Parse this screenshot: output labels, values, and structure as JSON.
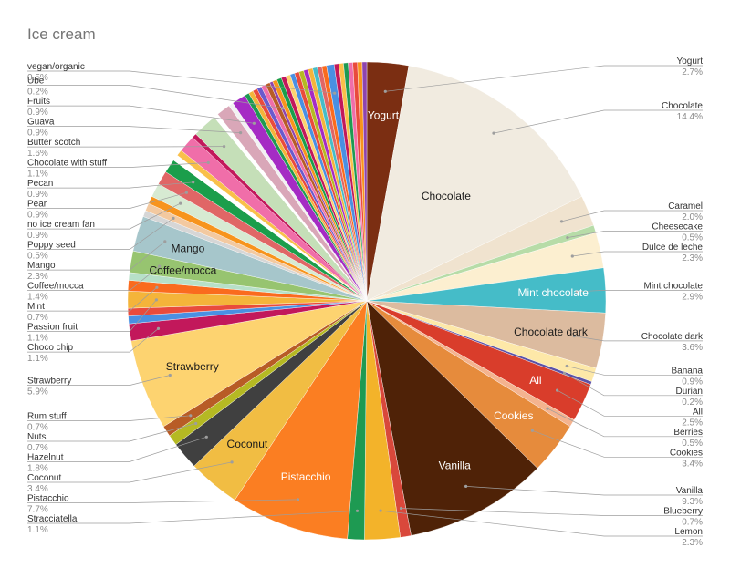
{
  "chart_data": {
    "type": "pie",
    "title": "Ice cream",
    "slices": [
      {
        "label": "Yogurt",
        "pct_label": "2.7%",
        "value": 2.7,
        "color": "#7b2e12",
        "slice_label": "Yogurt"
      },
      {
        "label": "Chocolate",
        "pct_label": "14.4%",
        "value": 14.4,
        "color": "#f1ebe0",
        "slice_label": "Chocolate"
      },
      {
        "label": "Caramel",
        "pct_label": "2.0%",
        "value": 2.0,
        "color": "#f0e3cf"
      },
      {
        "label": "Cheesecake",
        "pct_label": "0.5%",
        "value": 0.5,
        "color": "#b7dca8"
      },
      {
        "label": "Dulce de leche",
        "pct_label": "2.3%",
        "value": 2.3,
        "color": "#fcefd0"
      },
      {
        "label": "Mint chocolate",
        "pct_label": "2.9%",
        "value": 2.9,
        "color": "#45bcc8",
        "slice_label": "Mint chocolate"
      },
      {
        "label": "Chocolate dark",
        "pct_label": "3.6%",
        "value": 3.6,
        "color": "#dcbb9f",
        "slice_label": "Chocolate dark"
      },
      {
        "label": "Banana",
        "pct_label": "0.9%",
        "value": 0.9,
        "color": "#fde8a8"
      },
      {
        "label": "Durian",
        "pct_label": "0.2%",
        "value": 0.2,
        "color": "#5b52a6"
      },
      {
        "label": "All",
        "pct_label": "2.5%",
        "value": 2.5,
        "color": "#d93d2b",
        "slice_label": "All"
      },
      {
        "label": "Berries",
        "pct_label": "0.5%",
        "value": 0.5,
        "color": "#f4b38f"
      },
      {
        "label": "Cookies",
        "pct_label": "3.4%",
        "value": 3.4,
        "color": "#e68b3c",
        "slice_label": "Cookies"
      },
      {
        "label": "Vanilla",
        "pct_label": "9.3%",
        "value": 9.3,
        "color": "#4f2207",
        "slice_label": "Vanilla"
      },
      {
        "label": "Blueberry",
        "pct_label": "0.7%",
        "value": 0.7,
        "color": "#d9483b"
      },
      {
        "label": "Lemon",
        "pct_label": "2.3%",
        "value": 2.3,
        "color": "#f3b32a"
      },
      {
        "label": "Stracciatella",
        "pct_label": "1.1%",
        "value": 1.1,
        "color": "#1e9a52"
      },
      {
        "label": "Pistacchio",
        "pct_label": "7.7%",
        "value": 7.7,
        "color": "#fb7e22",
        "slice_label": "Pistacchio"
      },
      {
        "label": "Coconut",
        "pct_label": "3.4%",
        "value": 3.4,
        "color": "#f1bd43",
        "slice_label": "Coconut"
      },
      {
        "label": "Hazelnut",
        "pct_label": "1.8%",
        "value": 1.8,
        "color": "#404040"
      },
      {
        "label": "Nuts",
        "pct_label": "0.7%",
        "value": 0.7,
        "color": "#b5b923"
      },
      {
        "label": "Rum stuff",
        "pct_label": "0.7%",
        "value": 0.7,
        "color": "#b85c26"
      },
      {
        "label": "Strawberry",
        "pct_label": "5.9%",
        "value": 5.9,
        "color": "#fdd370",
        "slice_label": "Strawberry"
      },
      {
        "label": "Choco chip",
        "pct_label": "1.1%",
        "value": 1.1,
        "color": "#c2185b"
      },
      {
        "label": "",
        "value": 0.5,
        "color": "#4a90e2"
      },
      {
        "label": "",
        "value": 0.5,
        "color": "#e94b3c"
      },
      {
        "label": "Passion fruit",
        "pct_label": "1.1%",
        "value": 1.1,
        "color": "#f4b43a"
      },
      {
        "label": "Mint",
        "pct_label": "0.7%",
        "value": 0.7,
        "color": "#fa6b1e"
      },
      {
        "label": "",
        "value": 0.5,
        "color": "#b7e0c8"
      },
      {
        "label": "Coffee/mocca",
        "pct_label": "1.4%",
        "value": 1.4,
        "color": "#97c470",
        "slice_label": "Coffee/mocca"
      },
      {
        "label": "Mango",
        "pct_label": "2.3%",
        "value": 2.3,
        "color": "#a6c6cb",
        "slice_label": "Mango"
      },
      {
        "label": "",
        "value": 0.4,
        "color": "#d6d6d6"
      },
      {
        "label": "Poppy seed",
        "pct_label": "0.5%",
        "value": 0.5,
        "color": "#f3c9a0"
      },
      {
        "label": "",
        "value": 0.5,
        "color": "#f7941d"
      },
      {
        "label": "no ice cream fan",
        "pct_label": "0.9%",
        "value": 0.9,
        "color": "#d7ead2"
      },
      {
        "label": "Pear",
        "pct_label": "0.9%",
        "value": 0.9,
        "color": "#e06666"
      },
      {
        "label": "Pecan",
        "pct_label": "0.9%",
        "value": 0.9,
        "color": "#1b9e4b"
      },
      {
        "label": "",
        "value": 0.4,
        "color": "#ffffff"
      },
      {
        "label": "",
        "value": 0.4,
        "color": "#f9c04a"
      },
      {
        "label": "Chocolate with stuff",
        "pct_label": "1.1%",
        "value": 1.1,
        "color": "#f06ea9"
      },
      {
        "label": "",
        "value": 0.3,
        "color": "#c2185b"
      },
      {
        "label": "Butter scotch",
        "pct_label": "1.6%",
        "value": 1.6,
        "color": "#c5dfb8"
      },
      {
        "label": "",
        "value": 0.3,
        "color": "#ffffff"
      },
      {
        "label": "Guava",
        "pct_label": "0.9%",
        "value": 0.9,
        "color": "#d9a7b8"
      },
      {
        "label": "",
        "value": 0.3,
        "color": "#f2f2f2"
      },
      {
        "label": "Fruits",
        "pct_label": "0.9%",
        "value": 0.9,
        "color": "#a52bc4"
      },
      {
        "label": "",
        "value": 0.3,
        "color": "#1e9a52"
      },
      {
        "label": "",
        "value": 0.3,
        "color": "#f4b43a"
      },
      {
        "label": "",
        "value": 0.3,
        "color": "#e94b3c"
      },
      {
        "label": "",
        "value": 0.3,
        "color": "#6a5acd"
      },
      {
        "label": "",
        "value": 0.3,
        "color": "#f06ea9"
      },
      {
        "label": "",
        "value": 0.3,
        "color": "#b85c26"
      },
      {
        "label": "Ube",
        "pct_label": "0.2%",
        "value": 0.2,
        "color": "#8e44ad"
      },
      {
        "label": "",
        "value": 0.3,
        "color": "#f7941d"
      },
      {
        "label": "",
        "value": 0.3,
        "color": "#1b9e4b"
      },
      {
        "label": "",
        "value": 0.3,
        "color": "#c2185b"
      },
      {
        "label": "",
        "value": 0.3,
        "color": "#fdd370"
      },
      {
        "label": "",
        "value": 0.3,
        "color": "#4a90e2"
      },
      {
        "label": "",
        "value": 0.3,
        "color": "#e94b3c"
      },
      {
        "label": "",
        "value": 0.3,
        "color": "#b5b923"
      },
      {
        "label": "",
        "value": 0.3,
        "color": "#a52bc4"
      },
      {
        "label": "",
        "value": 0.3,
        "color": "#f4b43a"
      },
      {
        "label": "",
        "value": 0.3,
        "color": "#45bcc8"
      },
      {
        "label": "",
        "value": 0.3,
        "color": "#e06666"
      },
      {
        "label": "",
        "value": 0.3,
        "color": "#fa6b1e"
      },
      {
        "label": "vegan/organic",
        "pct_label": "0.5%",
        "value": 0.5,
        "color": "#4a90e2"
      },
      {
        "label": "",
        "value": 0.3,
        "color": "#c2185b"
      },
      {
        "label": "",
        "value": 0.3,
        "color": "#f9c04a"
      },
      {
        "label": "",
        "value": 0.3,
        "color": "#1e9a52"
      },
      {
        "label": "",
        "value": 0.3,
        "color": "#f06ea9"
      },
      {
        "label": "",
        "value": 0.3,
        "color": "#e94b3c"
      },
      {
        "label": "",
        "value": 0.3,
        "color": "#f7941d"
      },
      {
        "label": "",
        "value": 0.3,
        "color": "#8e44ad"
      }
    ],
    "legend": "none",
    "label_position": "outside with leader lines"
  }
}
